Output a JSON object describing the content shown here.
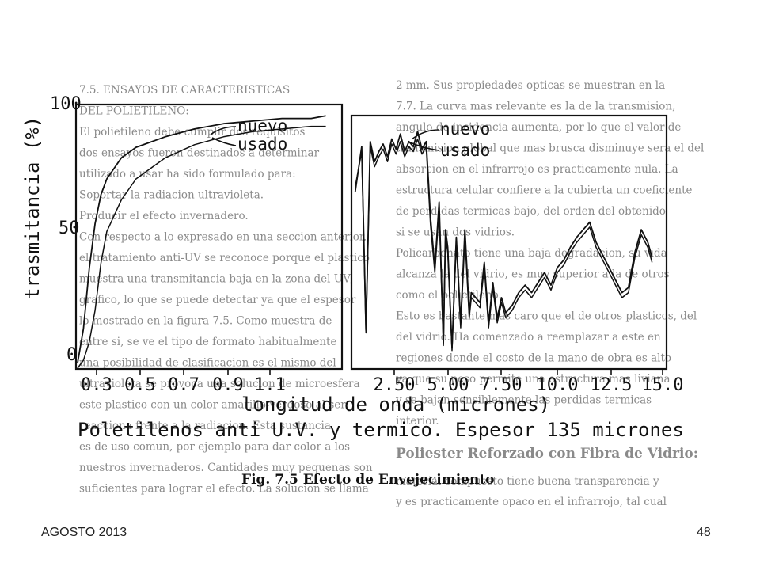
{
  "slide": {
    "footer_left": "AGOSTO 2013",
    "page_number": "48"
  },
  "figure": {
    "caption": "Fig. 7.5 Efecto de Envejecimiento",
    "subtitle": "Poletilenos anti U.V. y termico. Espesor 135 micrones",
    "xlabel": "longitud de onda (micrones)",
    "ylabel": "trasmitancia (%)",
    "colors": {
      "ink": "#111111",
      "paper": "#ffffff",
      "bleed": "#8a8a8a"
    }
  },
  "bleed_text": {
    "left": [
      "7.5. ENSAYOS DE CARACTERISTICAS",
      "DEL POLIETILENO:",
      "El polietileno debe cumplir dos requisitos",
      "dos ensayos fueron destinados a determinar",
      "utilizado a usar ha sido formulado para:",
      "Soportar la radiacion ultravioleta.",
      "Producir el efecto invernadero.",
      "Con respecto a lo expresado en una seccion anterior,",
      "el tratamiento anti-UV se reconoce porque el plastico",
      "muestra una transmitancia baja en la zona del UV;",
      "grafico, lo que se puede detectar ya que el espesor",
      "lo mostrado en la figura 7.5. Como muestra de",
      "entre si, se ve el tipo de formato habitualmente",
      "una posibilidad de clasificacion es el mismo del",
      "ultravioleta se provoca una solucion de microesfera",
      "este plastico con un color amarillo-verdoso al ser",
      "reacciona frente a la radiacion. Esta sustancia",
      "es de uso comun, por ejemplo para dar color a los",
      "nuestros invernaderos. Cantidades muy pequenas son",
      "suficientes para lograr el efecto. La solucion se llama"
    ],
    "right": [
      "2 mm. Sus propiedades opticas se muestran en la",
      "7.7. La curva mas relevante es la de la transmision,",
      "angulo de incidencia aumenta, por lo que el valor de",
      "transmision global que mas brusca disminuye sera el del",
      "absorcion en el infrarrojo es practicamente nula. La",
      "estructura celular confiere a la cubierta un coeficiente",
      "de perdidas termicas bajo, del orden del obtenido",
      "si se usan dos vidrios.",
      "Policarbonato tiene una baja degradacion, su vida",
      "alcanza la del vidrio, es muy superior a la de otros",
      "como el polietileno.",
      "Esto es bastante mas caro que el de otros plasticos, del",
      "del vidrio. Ha comenzado a reemplazar a este en",
      "regiones donde el costo de la mano de obra es alto",
      "ya que su peso permite una estructura mas liviana",
      "y se bajan sensiblemente las perdidas termicas",
      "interior."
    ],
    "right_heading": "Poliester Reforzado con Fibra de Vidrio:",
    "right_tail": [
      "material compuesto tiene buena transparencia y",
      "y es practicamente opaco en el infrarrojo, tal cual"
    ]
  },
  "chart_data": [
    {
      "type": "line",
      "panel": "left",
      "x_ticks": [
        "0.3",
        "0.5",
        "0.7",
        "0.9",
        "1.1"
      ],
      "y_ticks": [
        "100",
        "50",
        "0"
      ],
      "xlim": [
        0.3,
        1.2
      ],
      "ylim": [
        0,
        100
      ],
      "grid": false,
      "legend": "top-right",
      "x": [
        0.3,
        0.32,
        0.34,
        0.36,
        0.38,
        0.4,
        0.45,
        0.5,
        0.6,
        0.7,
        0.8,
        0.9,
        1.0,
        1.1,
        1.15
      ],
      "series": [
        {
          "name": "nuevo",
          "values": [
            2,
            15,
            38,
            55,
            66,
            72,
            80,
            84,
            88,
            91,
            93,
            94,
            95,
            95,
            96
          ]
        },
        {
          "name": "usado",
          "values": [
            0,
            3,
            10,
            22,
            40,
            52,
            64,
            72,
            80,
            85,
            88,
            90,
            91,
            92,
            92
          ]
        }
      ]
    },
    {
      "type": "line",
      "panel": "right",
      "x_ticks": [
        "2.50",
        "5.00",
        "7.50",
        "10.0",
        "12.5",
        "15.0"
      ],
      "xlim": [
        1.5,
        16.0
      ],
      "ylim": [
        0,
        100
      ],
      "grid": false,
      "legend": "top-left",
      "x": [
        1.6,
        1.9,
        2.1,
        2.3,
        2.5,
        2.7,
        2.9,
        3.1,
        3.3,
        3.5,
        3.7,
        3.9,
        4.1,
        4.3,
        4.5,
        4.7,
        4.9,
        5.1,
        5.3,
        5.5,
        5.7,
        5.8,
        5.9,
        6.1,
        6.3,
        6.5,
        6.7,
        6.9,
        7.0,
        7.2,
        7.4,
        7.6,
        7.8,
        8.0,
        8.2,
        8.4,
        8.6,
        8.9,
        9.2,
        9.5,
        9.8,
        10.1,
        10.4,
        10.7,
        11.0,
        11.3,
        11.6,
        11.9,
        12.2,
        12.5,
        12.8,
        13.1,
        13.4,
        13.7,
        14.0,
        14.3,
        14.6,
        14.9,
        15.2,
        15.4
      ],
      "series": [
        {
          "name": "nuevo",
          "values": [
            70,
            88,
            15,
            90,
            82,
            86,
            89,
            84,
            91,
            87,
            93,
            86,
            90,
            88,
            94,
            87,
            90,
            60,
            40,
            66,
            10,
            55,
            48,
            8,
            52,
            18,
            55,
            22,
            30,
            28,
            26,
            42,
            18,
            34,
            20,
            28,
            22,
            25,
            30,
            33,
            30,
            34,
            38,
            33,
            40,
            43,
            48,
            52,
            55,
            58,
            50,
            45,
            40,
            35,
            30,
            32,
            46,
            55,
            50,
            44
          ]
        },
        {
          "name": "usado",
          "values": [
            72,
            86,
            14,
            88,
            80,
            84,
            87,
            82,
            89,
            85,
            90,
            84,
            88,
            86,
            91,
            85,
            88,
            57,
            38,
            63,
            9,
            52,
            46,
            7,
            50,
            16,
            52,
            20,
            28,
            26,
            24,
            40,
            16,
            32,
            18,
            26,
            20,
            23,
            28,
            31,
            28,
            32,
            36,
            31,
            38,
            41,
            46,
            50,
            53,
            56,
            48,
            43,
            38,
            33,
            28,
            30,
            44,
            53,
            48,
            42
          ]
        }
      ]
    }
  ]
}
